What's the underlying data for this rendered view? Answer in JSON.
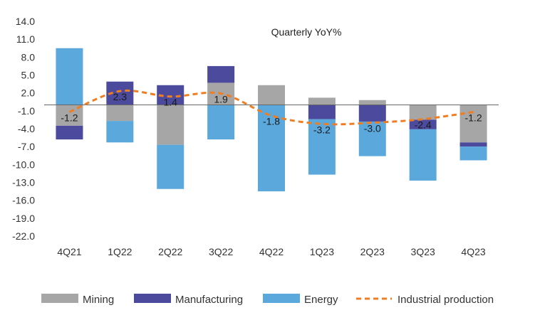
{
  "chart_data": {
    "type": "bar",
    "stacked": true,
    "title": "Quarterly YoY%",
    "categories": [
      "4Q21",
      "1Q22",
      "2Q22",
      "3Q22",
      "4Q22",
      "1Q23",
      "2Q23",
      "3Q23",
      "4Q23"
    ],
    "ylim": [
      -22.0,
      14.0
    ],
    "yticks": [
      14.0,
      11.0,
      8.0,
      5.0,
      2.0,
      -1.0,
      -4.0,
      -7.0,
      -10.0,
      -13.0,
      -16.0,
      -19.0,
      -22.0
    ],
    "ytick_labels": [
      "14.0",
      "11.0",
      "8.0",
      "5.0",
      "2.0",
      "-1.0",
      "-4.0",
      "-7.0",
      "-10.0",
      "-13.0",
      "-16.0",
      "-19.0",
      "-22.0"
    ],
    "grid": false,
    "legend_position": "bottom",
    "series": [
      {
        "name": "Mining",
        "kind": "bar",
        "color": "#a6a6a6",
        "values": [
          -3.5,
          -2.7,
          -6.7,
          3.7,
          3.3,
          1.2,
          0.8,
          -2.5,
          -6.3
        ]
      },
      {
        "name": "Manufacturing",
        "kind": "bar",
        "color": "#4b4a9c",
        "values": [
          -2.3,
          3.9,
          3.3,
          2.8,
          0.0,
          -2.4,
          -2.8,
          -1.6,
          -0.7
        ]
      },
      {
        "name": "Energy",
        "kind": "bar",
        "color": "#5ba8dd",
        "values": [
          9.5,
          -3.6,
          -7.4,
          -5.8,
          -14.5,
          -9.3,
          -5.8,
          -8.6,
          -2.3
        ]
      },
      {
        "name": "Industrial production",
        "kind": "line",
        "color": "#ef7d22",
        "values": [
          -1.2,
          2.3,
          1.4,
          1.9,
          -1.8,
          -3.2,
          -3.0,
          -2.4,
          -1.2
        ]
      }
    ],
    "data_labels": [
      "-1.2",
      "2.3",
      "1.4",
      "1.9",
      "-1.8",
      "-3.2",
      "-3.0",
      "-2.4",
      "-1.2"
    ]
  }
}
